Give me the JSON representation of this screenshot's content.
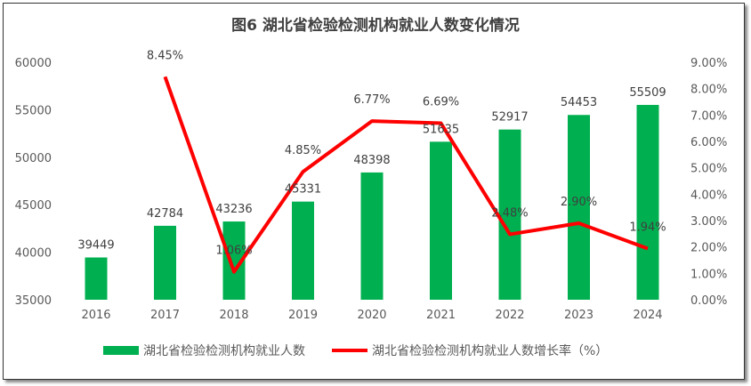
{
  "chart_data": {
    "type": "bar+line",
    "title": "图6  湖北省检验检测机构就业人数变化情况",
    "categories": [
      "2016",
      "2017",
      "2018",
      "2019",
      "2020",
      "2021",
      "2022",
      "2023",
      "2024"
    ],
    "series": [
      {
        "name": "湖北省检验检测机构就业人数",
        "type": "bar",
        "axis": "left",
        "color": "#00B050",
        "values": [
          39449,
          42784,
          43236,
          45331,
          48398,
          51635,
          52917,
          54453,
          55509
        ],
        "labels": [
          "39449",
          "42784",
          "43236",
          "45331",
          "48398",
          "51635",
          "52917",
          "54453",
          "55509"
        ]
      },
      {
        "name": "湖北省检验检测机构就业人数增长率（%）",
        "type": "line",
        "axis": "right",
        "color": "#FF0000",
        "values": [
          null,
          8.45,
          1.06,
          4.85,
          6.77,
          6.69,
          2.48,
          2.9,
          1.94
        ],
        "labels": [
          "",
          "8.45%",
          "1.06%",
          "4.85%",
          "6.77%",
          "6.69%",
          "2.48%",
          "2.90%",
          "1.94%"
        ]
      }
    ],
    "ylim_left": [
      35000,
      60000
    ],
    "yticks_left": [
      "35000",
      "40000",
      "45000",
      "50000",
      "55000",
      "60000"
    ],
    "ylim_right": [
      0,
      9
    ],
    "yticks_right": [
      "0.00%",
      "1.00%",
      "2.00%",
      "3.00%",
      "4.00%",
      "5.00%",
      "6.00%",
      "7.00%",
      "8.00%",
      "9.00%"
    ],
    "grid": false,
    "legend": "bottom"
  }
}
